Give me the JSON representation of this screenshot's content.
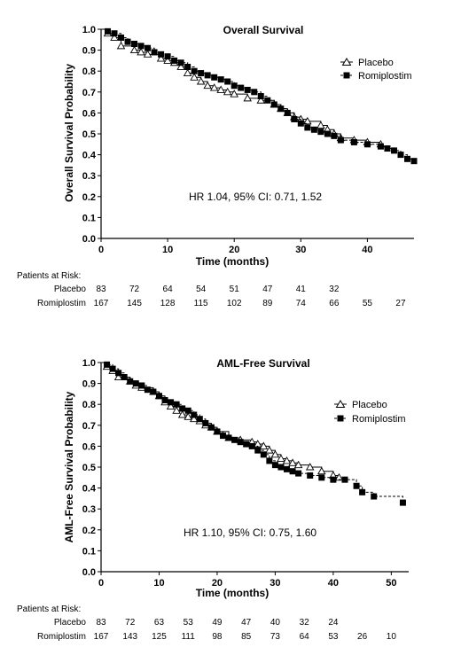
{
  "chart_data": [
    {
      "type": "line",
      "title": "Overall Survival",
      "xlabel": "Time (months)",
      "ylabel": "Overall Survival Probability",
      "xlim": [
        0,
        47
      ],
      "ylim": [
        0.0,
        1.0
      ],
      "xticks": [
        "0",
        "10",
        "20",
        "30",
        "40"
      ],
      "yticks": [
        "0.0",
        "0.1",
        "0.2",
        "0.3",
        "0.4",
        "0.5",
        "0.6",
        "0.7",
        "0.8",
        "0.9",
        "1.0"
      ],
      "annotation": "HR 1.04, 95% CI: 0.71, 1.52",
      "legend_position": "top-right",
      "series": [
        {
          "name": "Placebo",
          "marker": "open-triangle",
          "line_style": "solid",
          "x": [
            0,
            1,
            2,
            3,
            5,
            6,
            7,
            9,
            10,
            11,
            12,
            13,
            14,
            15,
            16,
            17,
            18,
            19,
            20,
            22,
            24,
            26,
            27,
            28,
            29,
            30,
            31,
            33,
            34,
            35,
            36,
            38,
            40,
            42
          ],
          "y": [
            1.0,
            0.98,
            0.96,
            0.92,
            0.9,
            0.89,
            0.88,
            0.86,
            0.85,
            0.84,
            0.82,
            0.79,
            0.77,
            0.75,
            0.73,
            0.72,
            0.71,
            0.7,
            0.69,
            0.67,
            0.66,
            0.64,
            0.62,
            0.6,
            0.58,
            0.57,
            0.56,
            0.54,
            0.52,
            0.5,
            0.48,
            0.47,
            0.46,
            0.45
          ]
        },
        {
          "name": "Romiplostim",
          "marker": "filled-square",
          "line_style": "dashed",
          "x": [
            0,
            1,
            2,
            3,
            4,
            5,
            6,
            7,
            8,
            9,
            10,
            11,
            12,
            13,
            14,
            15,
            16,
            17,
            18,
            19,
            20,
            21,
            22,
            23,
            24,
            25,
            26,
            27,
            28,
            29,
            30,
            31,
            32,
            33,
            34,
            35,
            36,
            38,
            40,
            42,
            43,
            44,
            45,
            46,
            47
          ],
          "y": [
            1.0,
            0.99,
            0.98,
            0.96,
            0.94,
            0.93,
            0.92,
            0.91,
            0.89,
            0.88,
            0.87,
            0.85,
            0.84,
            0.82,
            0.8,
            0.79,
            0.78,
            0.77,
            0.76,
            0.75,
            0.73,
            0.72,
            0.71,
            0.7,
            0.68,
            0.66,
            0.64,
            0.62,
            0.6,
            0.57,
            0.55,
            0.53,
            0.52,
            0.51,
            0.5,
            0.49,
            0.47,
            0.46,
            0.45,
            0.44,
            0.43,
            0.42,
            0.4,
            0.38,
            0.37
          ]
        }
      ],
      "at_risk": {
        "header": "Patients at Risk:",
        "timepoints": [
          0,
          5,
          10,
          15,
          20,
          25,
          30,
          35,
          40,
          45
        ],
        "rows": [
          {
            "label": "Placebo",
            "values": [
              "83",
              "72",
              "64",
              "54",
              "51",
              "47",
              "41",
              "32"
            ]
          },
          {
            "label": "Romiplostim",
            "values": [
              "167",
              "145",
              "128",
              "115",
              "102",
              "89",
              "74",
              "66",
              "55",
              "27"
            ]
          }
        ]
      }
    },
    {
      "type": "line",
      "title": "AML-Free Survival",
      "xlabel": "Time (months)",
      "ylabel": "AML-Free Survival Probability",
      "xlim": [
        0,
        53
      ],
      "ylim": [
        0.0,
        1.0
      ],
      "xticks": [
        "0",
        "10",
        "20",
        "30",
        "40",
        "50"
      ],
      "yticks": [
        "0.0",
        "0.1",
        "0.2",
        "0.3",
        "0.4",
        "0.5",
        "0.6",
        "0.7",
        "0.8",
        "0.9",
        "1.0"
      ],
      "annotation": "HR 1.10, 95% CI: 0.75, 1.60",
      "legend_position": "top-right",
      "series": [
        {
          "name": "Placebo",
          "marker": "open-triangle",
          "line_style": "solid",
          "x": [
            0,
            1,
            2,
            3,
            5,
            6,
            7,
            9,
            10,
            11,
            12,
            13,
            14,
            15,
            16,
            17,
            18,
            19,
            20,
            22,
            24,
            26,
            27,
            28,
            29,
            30,
            31,
            32,
            33,
            34,
            36,
            38,
            40,
            41
          ],
          "y": [
            1.0,
            0.98,
            0.96,
            0.93,
            0.91,
            0.89,
            0.88,
            0.86,
            0.84,
            0.81,
            0.79,
            0.77,
            0.75,
            0.74,
            0.73,
            0.72,
            0.7,
            0.69,
            0.67,
            0.64,
            0.63,
            0.62,
            0.61,
            0.6,
            0.58,
            0.56,
            0.54,
            0.53,
            0.52,
            0.51,
            0.5,
            0.48,
            0.46,
            0.45
          ]
        },
        {
          "name": "Romiplostim",
          "marker": "filled-square",
          "line_style": "dashed",
          "x": [
            0,
            1,
            2,
            3,
            4,
            5,
            6,
            7,
            8,
            9,
            10,
            11,
            12,
            13,
            14,
            15,
            16,
            17,
            18,
            19,
            20,
            21,
            22,
            23,
            24,
            25,
            26,
            27,
            28,
            29,
            30,
            31,
            32,
            33,
            34,
            36,
            38,
            40,
            42,
            44,
            45,
            47,
            52
          ],
          "y": [
            1.0,
            0.99,
            0.97,
            0.95,
            0.93,
            0.91,
            0.9,
            0.89,
            0.87,
            0.86,
            0.84,
            0.82,
            0.81,
            0.8,
            0.78,
            0.77,
            0.75,
            0.73,
            0.71,
            0.69,
            0.67,
            0.65,
            0.64,
            0.63,
            0.62,
            0.61,
            0.6,
            0.58,
            0.56,
            0.53,
            0.51,
            0.5,
            0.49,
            0.48,
            0.47,
            0.46,
            0.45,
            0.44,
            0.44,
            0.41,
            0.38,
            0.36,
            0.33
          ]
        }
      ],
      "at_risk": {
        "header": "Patients at Risk:",
        "timepoints": [
          0,
          5,
          10,
          15,
          20,
          25,
          30,
          35,
          40,
          45,
          50
        ],
        "rows": [
          {
            "label": "Placebo",
            "values": [
              "83",
              "72",
              "63",
              "53",
              "49",
              "47",
              "40",
              "32",
              "24"
            ]
          },
          {
            "label": "Romiplostim",
            "values": [
              "167",
              "143",
              "125",
              "111",
              "98",
              "85",
              "73",
              "64",
              "53",
              "26",
              "10"
            ]
          }
        ]
      }
    }
  ]
}
